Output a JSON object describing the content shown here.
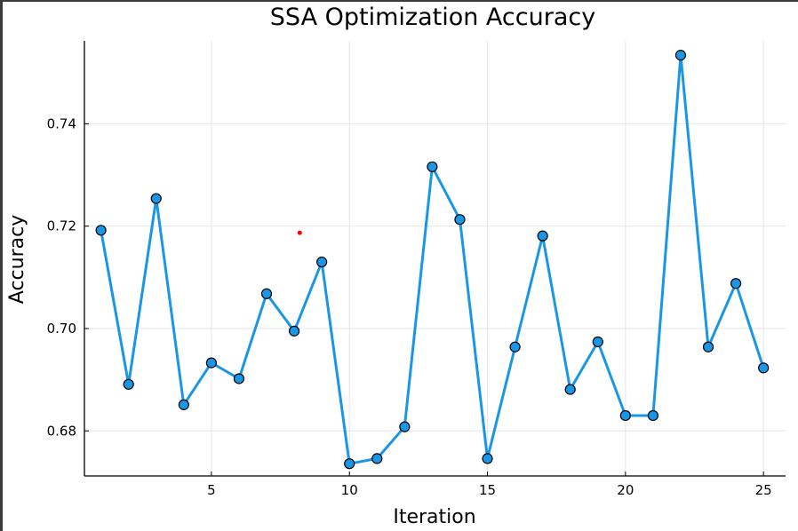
{
  "chart_data": {
    "type": "line",
    "title": "SSA Optimization Accuracy",
    "xlabel": "Iteration",
    "ylabel": "Accuracy",
    "xlim": [
      0.4,
      25.8
    ],
    "ylim": [
      0.6712,
      0.7562
    ],
    "xticks": [
      5,
      10,
      15,
      20,
      25
    ],
    "yticks": [
      0.68,
      0.7,
      0.72,
      0.74
    ],
    "ytick_labels": [
      "0.68",
      "0.70",
      "0.72",
      "0.74"
    ],
    "xtick_labels": [
      "5",
      "10",
      "15",
      "20",
      "25"
    ],
    "grid": true,
    "series": [
      {
        "color": "#1a96e6",
        "marker": "circle",
        "x": [
          1,
          2,
          3,
          4,
          5,
          6,
          7,
          8,
          9,
          10,
          11,
          12,
          13,
          14,
          15,
          16,
          17,
          18,
          19,
          20,
          21,
          22,
          23,
          24,
          25
        ],
        "values": [
          0.7192,
          0.6891,
          0.7254,
          0.6851,
          0.6933,
          0.6902,
          0.7068,
          0.6995,
          0.713,
          0.6736,
          0.6746,
          0.6808,
          0.7316,
          0.7213,
          0.6746,
          0.6964,
          0.7181,
          0.6881,
          0.6974,
          0.683,
          0.683,
          0.7534,
          0.6964,
          0.7088,
          0.6923
        ]
      }
    ],
    "annotations": [
      {
        "x": 8.2,
        "y": 0.7187,
        "color": "#ff0000"
      }
    ]
  }
}
